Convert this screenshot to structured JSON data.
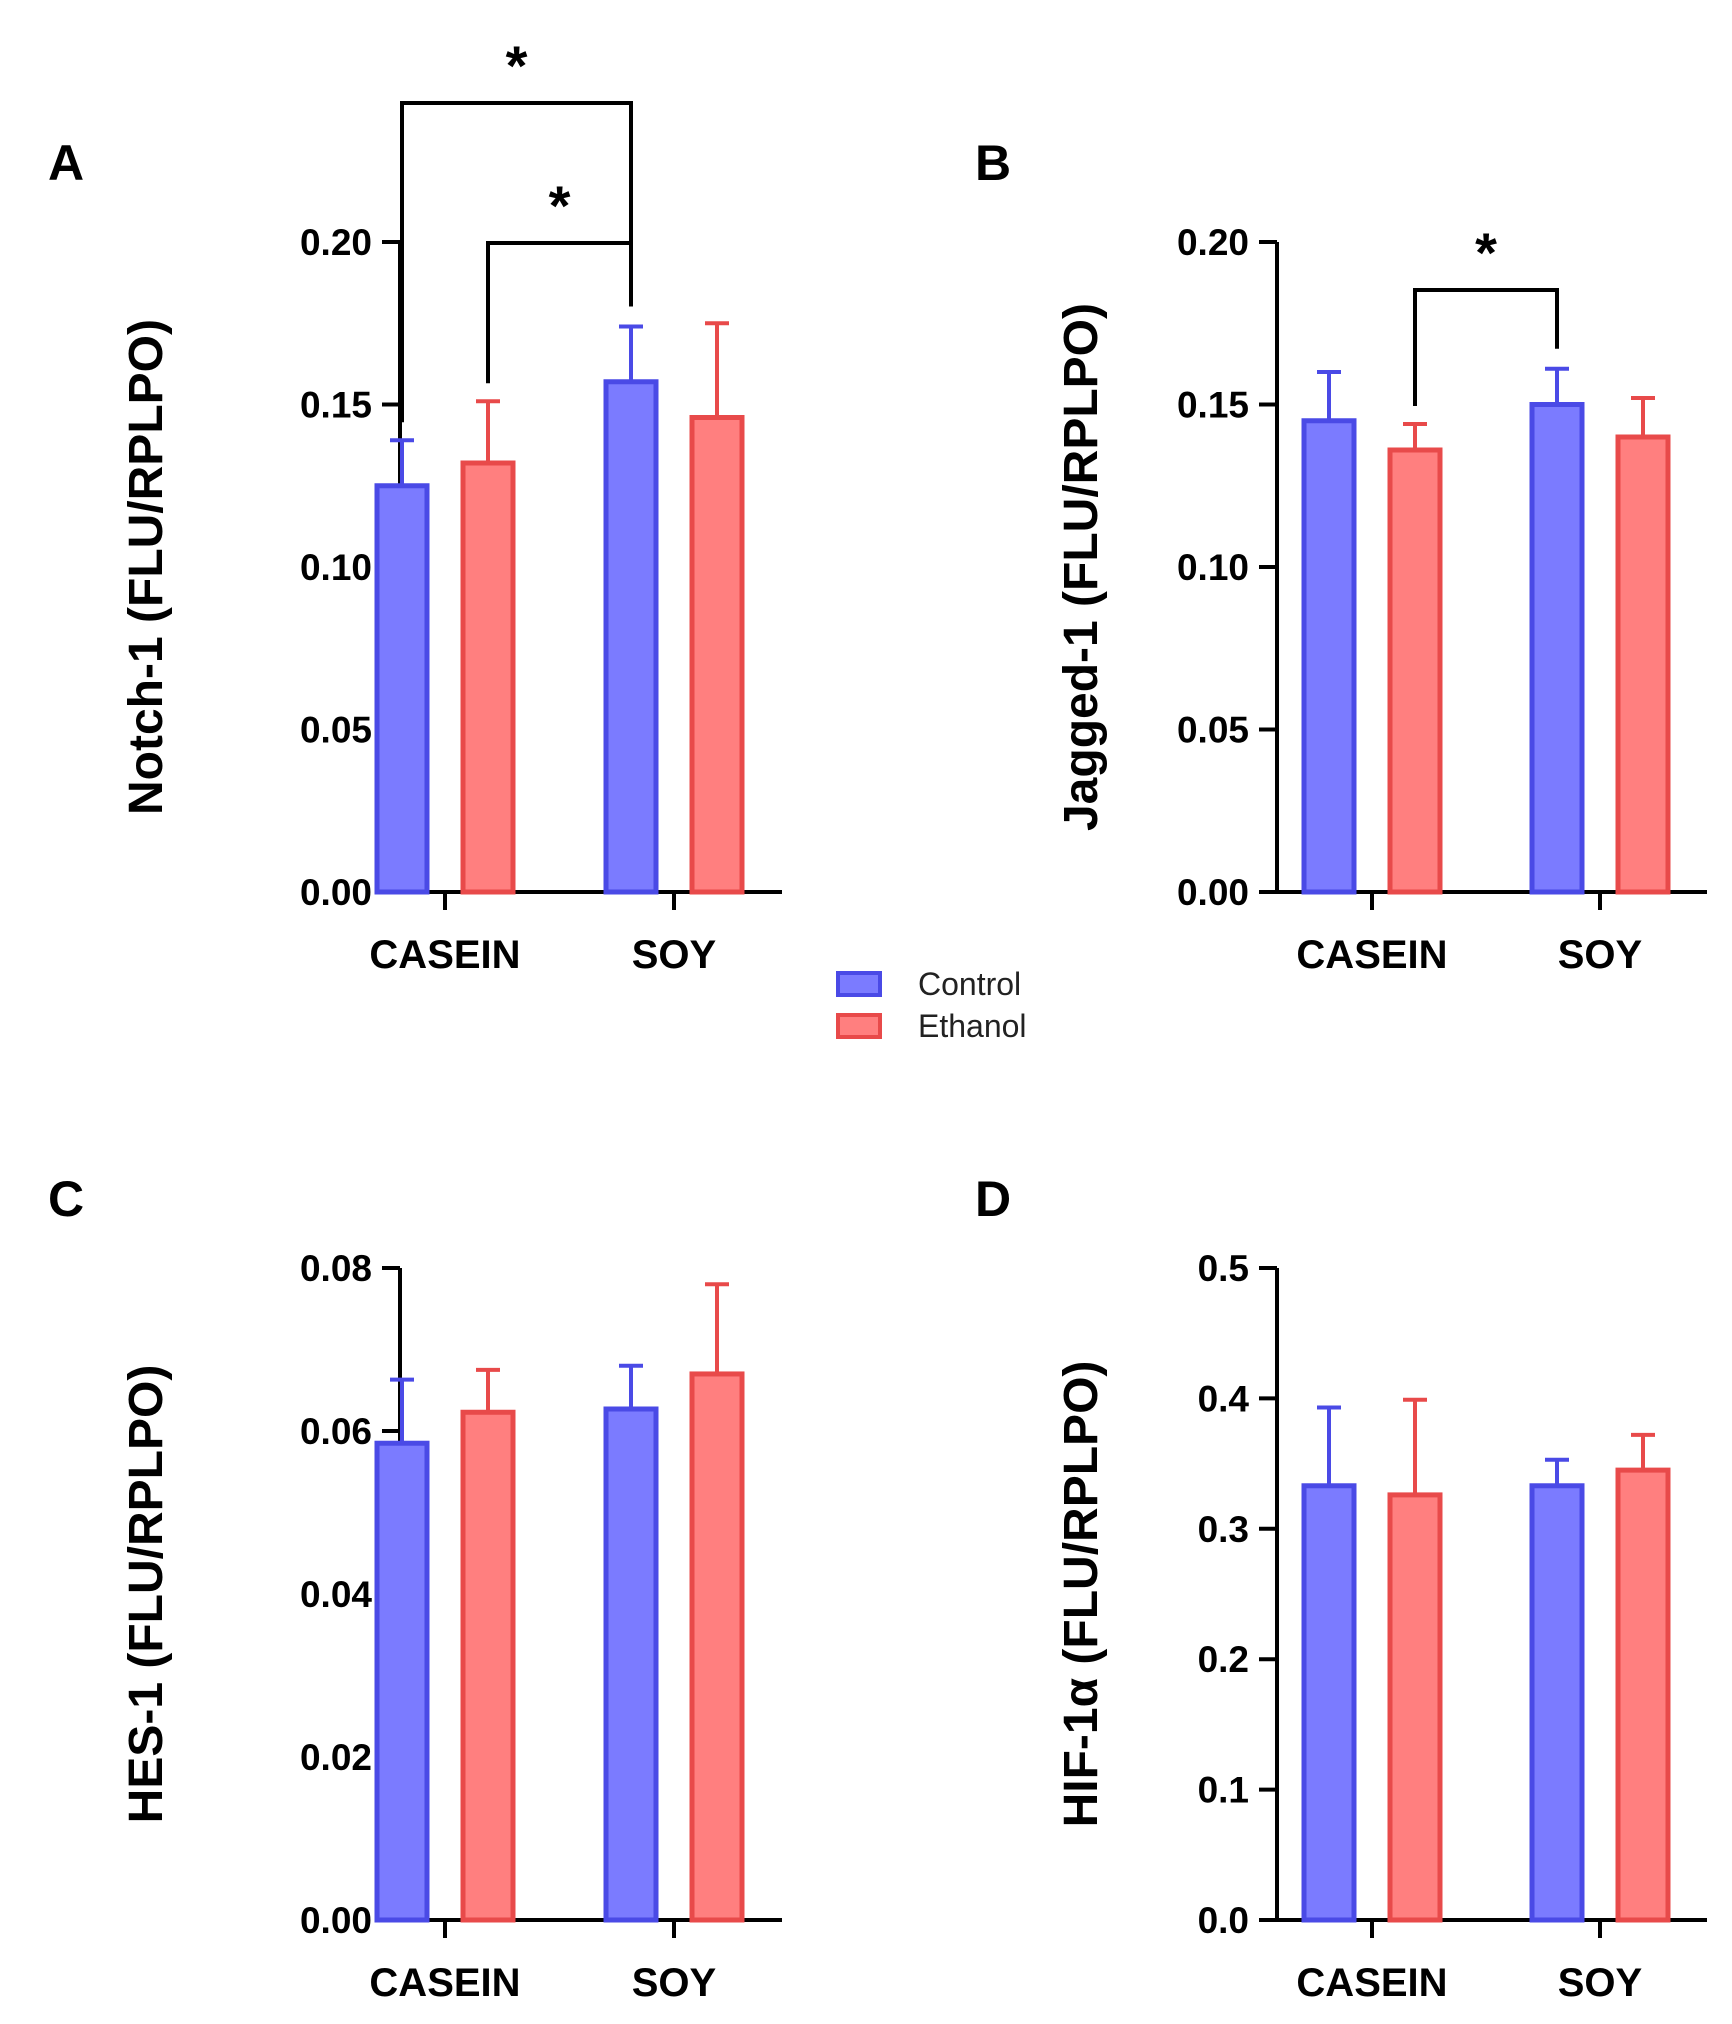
{
  "colors": {
    "control_fill": "#7b7bff",
    "control_stroke": "#4a4ae6",
    "ethanol_fill": "#ff7f7f",
    "ethanol_stroke": "#e84a4a",
    "axis": "#000000"
  },
  "legend": {
    "items": [
      {
        "label": "Control",
        "color_key": "control"
      },
      {
        "label": "Ethanol",
        "color_key": "ethanol"
      }
    ]
  },
  "chart_data": [
    {
      "panel": "A",
      "type": "bar",
      "ylabel": "Notch-1 (FLU/RPLPO)",
      "ylim": [
        0,
        0.2
      ],
      "yticks": [
        "0.00",
        "0.05",
        "0.10",
        "0.15",
        "0.20"
      ],
      "categories": [
        "CASEIN",
        "SOY"
      ],
      "series": [
        {
          "name": "Control",
          "values": [
            0.125,
            0.157
          ],
          "errors": [
            0.014,
            0.017
          ]
        },
        {
          "name": "Ethanol",
          "values": [
            0.132,
            0.146
          ],
          "errors": [
            0.019,
            0.029
          ]
        }
      ],
      "significance": [
        {
          "from": "CASEIN Control",
          "to": "SOY Control",
          "label": "*"
        },
        {
          "from": "CASEIN Ethanol",
          "to": "SOY Control",
          "label": "*"
        }
      ]
    },
    {
      "panel": "B",
      "type": "bar",
      "ylabel": "Jagged-1 (FLU/RPLPO)",
      "ylim": [
        0,
        0.2
      ],
      "yticks": [
        "0.00",
        "0.05",
        "0.10",
        "0.15",
        "0.20"
      ],
      "categories": [
        "CASEIN",
        "SOY"
      ],
      "series": [
        {
          "name": "Control",
          "values": [
            0.145,
            0.15
          ],
          "errors": [
            0.015,
            0.011
          ]
        },
        {
          "name": "Ethanol",
          "values": [
            0.136,
            0.14
          ],
          "errors": [
            0.008,
            0.012
          ]
        }
      ],
      "significance": [
        {
          "from": "CASEIN Ethanol",
          "to": "SOY Control",
          "label": "*"
        }
      ]
    },
    {
      "panel": "C",
      "type": "bar",
      "ylabel": "HES-1 (FLU/RPLPO)",
      "ylim": [
        0,
        0.08
      ],
      "yticks": [
        "0.00",
        "0.02",
        "0.04",
        "0.06",
        "0.08"
      ],
      "categories": [
        "CASEIN",
        "SOY"
      ],
      "series": [
        {
          "name": "Control",
          "values": [
            0.0585,
            0.0627
          ],
          "errors": [
            0.0078,
            0.0053
          ]
        },
        {
          "name": "Ethanol",
          "values": [
            0.0623,
            0.067
          ],
          "errors": [
            0.0052,
            0.011
          ]
        }
      ],
      "significance": []
    },
    {
      "panel": "D",
      "type": "bar",
      "ylabel": "HIF-1α (FLU/RPLPO)",
      "ylim": [
        0,
        0.5
      ],
      "yticks": [
        "0.0",
        "0.1",
        "0.2",
        "0.3",
        "0.4",
        "0.5"
      ],
      "categories": [
        "CASEIN",
        "SOY"
      ],
      "series": [
        {
          "name": "Control",
          "values": [
            0.333,
            0.333
          ],
          "errors": [
            0.06,
            0.02
          ]
        },
        {
          "name": "Ethanol",
          "values": [
            0.326,
            0.345
          ],
          "errors": [
            0.073,
            0.027
          ]
        }
      ],
      "significance": []
    }
  ]
}
